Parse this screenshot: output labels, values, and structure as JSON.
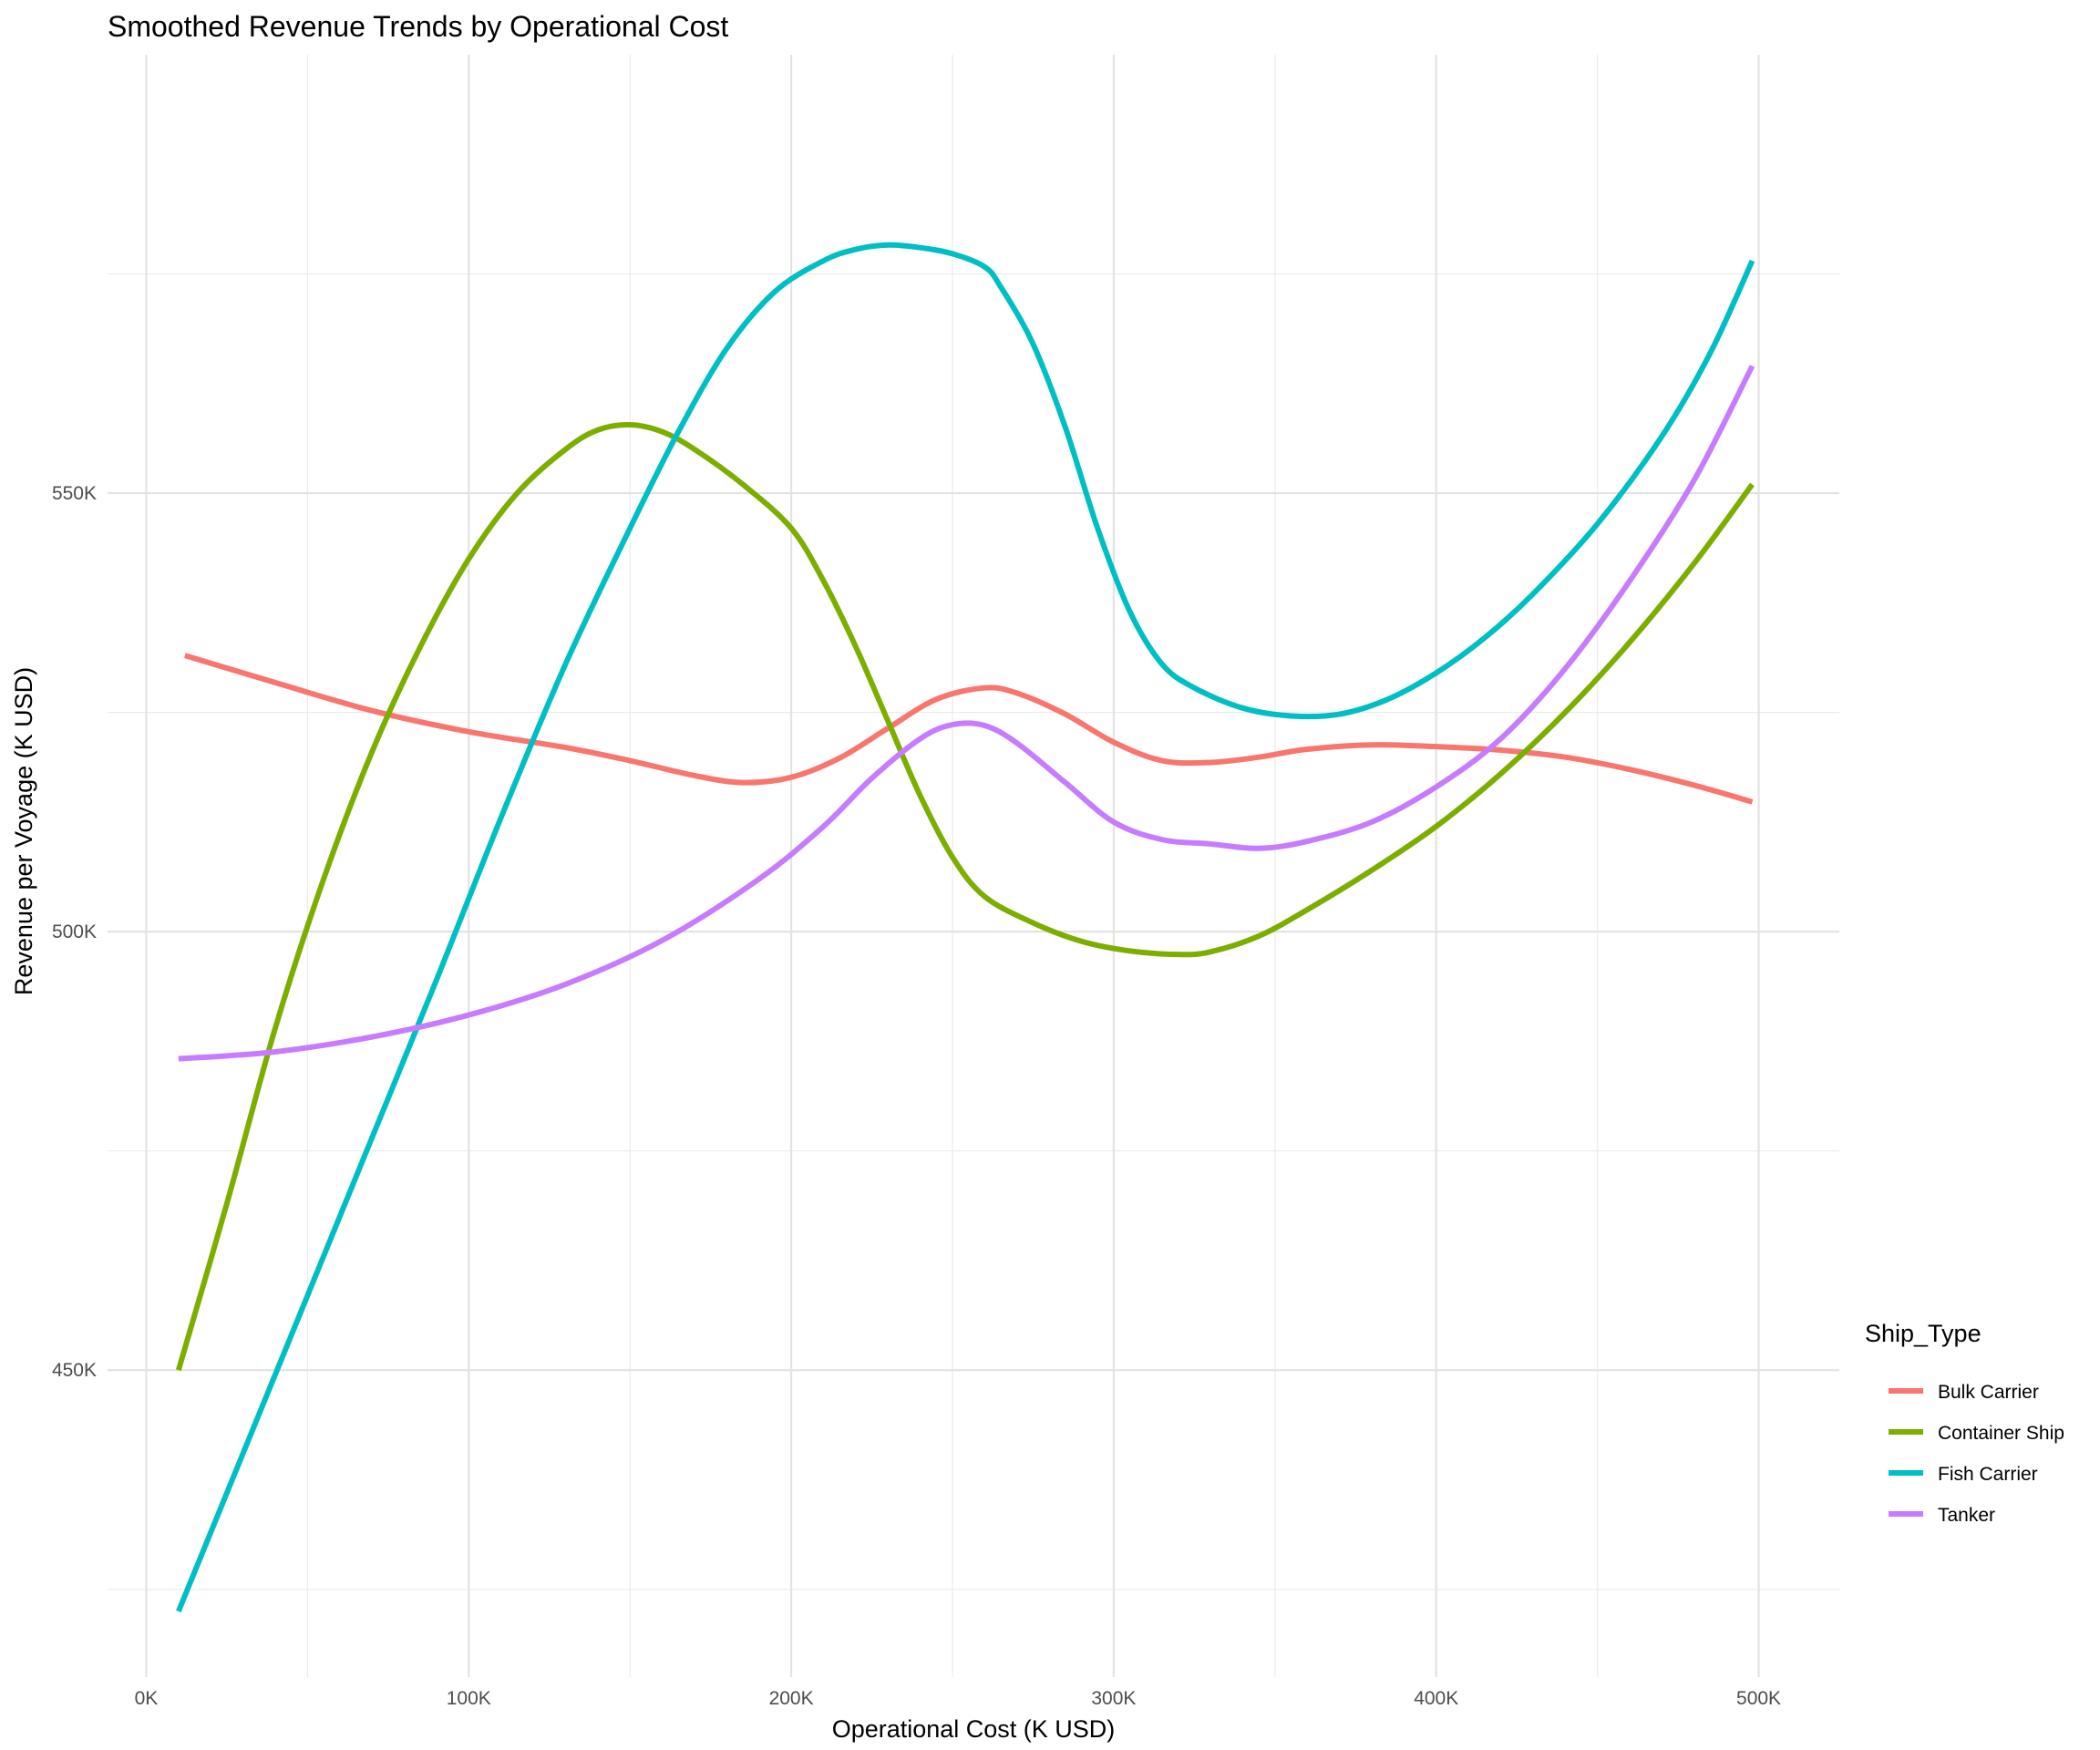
{
  "chart_data": {
    "type": "line",
    "title": "Smoothed Revenue Trends by Operational Cost",
    "xlabel": "Operational Cost (K USD)",
    "ylabel": "Revenue per Voyage (K USD)",
    "xlim": [
      -12000,
      525000
    ],
    "ylim": [
      415000,
      600000
    ],
    "x_ticks": [
      0,
      100000,
      200000,
      300000,
      400000,
      500000
    ],
    "x_tick_labels": [
      "0K",
      "100K",
      "200K",
      "300K",
      "400K",
      "500K"
    ],
    "y_ticks": [
      450000,
      500000,
      550000
    ],
    "y_tick_labels": [
      "450K",
      "500K",
      "550K"
    ],
    "grid": true,
    "legend_title": "Ship_Type",
    "legend_position": "right",
    "series": [
      {
        "name": "Bulk Carrier",
        "color": "#F8766D",
        "points": [
          [
            12000,
            531500
          ],
          [
            40000,
            528400
          ],
          [
            70000,
            525200
          ],
          [
            100000,
            522800
          ],
          [
            130000,
            521000
          ],
          [
            150000,
            519500
          ],
          [
            170000,
            517800
          ],
          [
            185000,
            517000
          ],
          [
            200000,
            517600
          ],
          [
            215000,
            519800
          ],
          [
            230000,
            523200
          ],
          [
            245000,
            526500
          ],
          [
            260000,
            527800
          ],
          [
            270000,
            527200
          ],
          [
            285000,
            524800
          ],
          [
            300000,
            521600
          ],
          [
            315000,
            519500
          ],
          [
            330000,
            519300
          ],
          [
            345000,
            519900
          ],
          [
            360000,
            520800
          ],
          [
            380000,
            521300
          ],
          [
            400000,
            521100
          ],
          [
            420000,
            520700
          ],
          [
            440000,
            519900
          ],
          [
            460000,
            518500
          ],
          [
            480000,
            516700
          ],
          [
            498000,
            514800
          ]
        ]
      },
      {
        "name": "Container Ship",
        "color": "#7CAE00",
        "points": [
          [
            10000,
            450000
          ],
          [
            25000,
            469000
          ],
          [
            40000,
            489000
          ],
          [
            55000,
            506000
          ],
          [
            70000,
            520500
          ],
          [
            85000,
            532500
          ],
          [
            100000,
            542500
          ],
          [
            115000,
            550000
          ],
          [
            130000,
            555000
          ],
          [
            140000,
            557200
          ],
          [
            150000,
            557800
          ],
          [
            160000,
            557000
          ],
          [
            170000,
            555000
          ],
          [
            185000,
            551000
          ],
          [
            200000,
            546000
          ],
          [
            210000,
            540000
          ],
          [
            220000,
            532500
          ],
          [
            230000,
            524000
          ],
          [
            240000,
            515500
          ],
          [
            250000,
            508500
          ],
          [
            260000,
            504000
          ],
          [
            275000,
            501000
          ],
          [
            290000,
            498900
          ],
          [
            305000,
            497800
          ],
          [
            320000,
            497400
          ],
          [
            330000,
            497700
          ],
          [
            345000,
            499500
          ],
          [
            360000,
            502500
          ],
          [
            380000,
            507000
          ],
          [
            400000,
            512000
          ],
          [
            420000,
            518000
          ],
          [
            440000,
            525000
          ],
          [
            460000,
            533000
          ],
          [
            480000,
            542000
          ],
          [
            498000,
            551000
          ]
        ]
      },
      {
        "name": "Fish Carrier",
        "color": "#00BFC4",
        "points": [
          [
            10000,
            422500
          ],
          [
            30000,
            440500
          ],
          [
            50000,
            458500
          ],
          [
            70000,
            476500
          ],
          [
            90000,
            494500
          ],
          [
            110000,
            513000
          ],
          [
            130000,
            530500
          ],
          [
            150000,
            546000
          ],
          [
            165000,
            557000
          ],
          [
            180000,
            566500
          ],
          [
            195000,
            573000
          ],
          [
            210000,
            576500
          ],
          [
            220000,
            577800
          ],
          [
            230000,
            578300
          ],
          [
            240000,
            578000
          ],
          [
            250000,
            577300
          ],
          [
            260000,
            575800
          ],
          [
            265000,
            573500
          ],
          [
            275000,
            567000
          ],
          [
            285000,
            557500
          ],
          [
            295000,
            546000
          ],
          [
            305000,
            536500
          ],
          [
            315000,
            530500
          ],
          [
            325000,
            527800
          ],
          [
            340000,
            525500
          ],
          [
            355000,
            524600
          ],
          [
            370000,
            524800
          ],
          [
            385000,
            526500
          ],
          [
            400000,
            529500
          ],
          [
            415000,
            533500
          ],
          [
            430000,
            538500
          ],
          [
            450000,
            546500
          ],
          [
            470000,
            556500
          ],
          [
            485000,
            566000
          ],
          [
            498000,
            576500
          ]
        ]
      },
      {
        "name": "Tanker",
        "color": "#C77CFF",
        "points": [
          [
            10000,
            485500
          ],
          [
            40000,
            486300
          ],
          [
            70000,
            488000
          ],
          [
            100000,
            490500
          ],
          [
            130000,
            494000
          ],
          [
            160000,
            499000
          ],
          [
            190000,
            506000
          ],
          [
            210000,
            512000
          ],
          [
            225000,
            517500
          ],
          [
            240000,
            522000
          ],
          [
            250000,
            523600
          ],
          [
            260000,
            523500
          ],
          [
            270000,
            521500
          ],
          [
            285000,
            517000
          ],
          [
            300000,
            512500
          ],
          [
            315000,
            510500
          ],
          [
            330000,
            510000
          ],
          [
            345000,
            509500
          ],
          [
            360000,
            510300
          ],
          [
            380000,
            512500
          ],
          [
            400000,
            516500
          ],
          [
            420000,
            522000
          ],
          [
            440000,
            530000
          ],
          [
            460000,
            540000
          ],
          [
            480000,
            551500
          ],
          [
            498000,
            564500
          ]
        ]
      }
    ]
  }
}
